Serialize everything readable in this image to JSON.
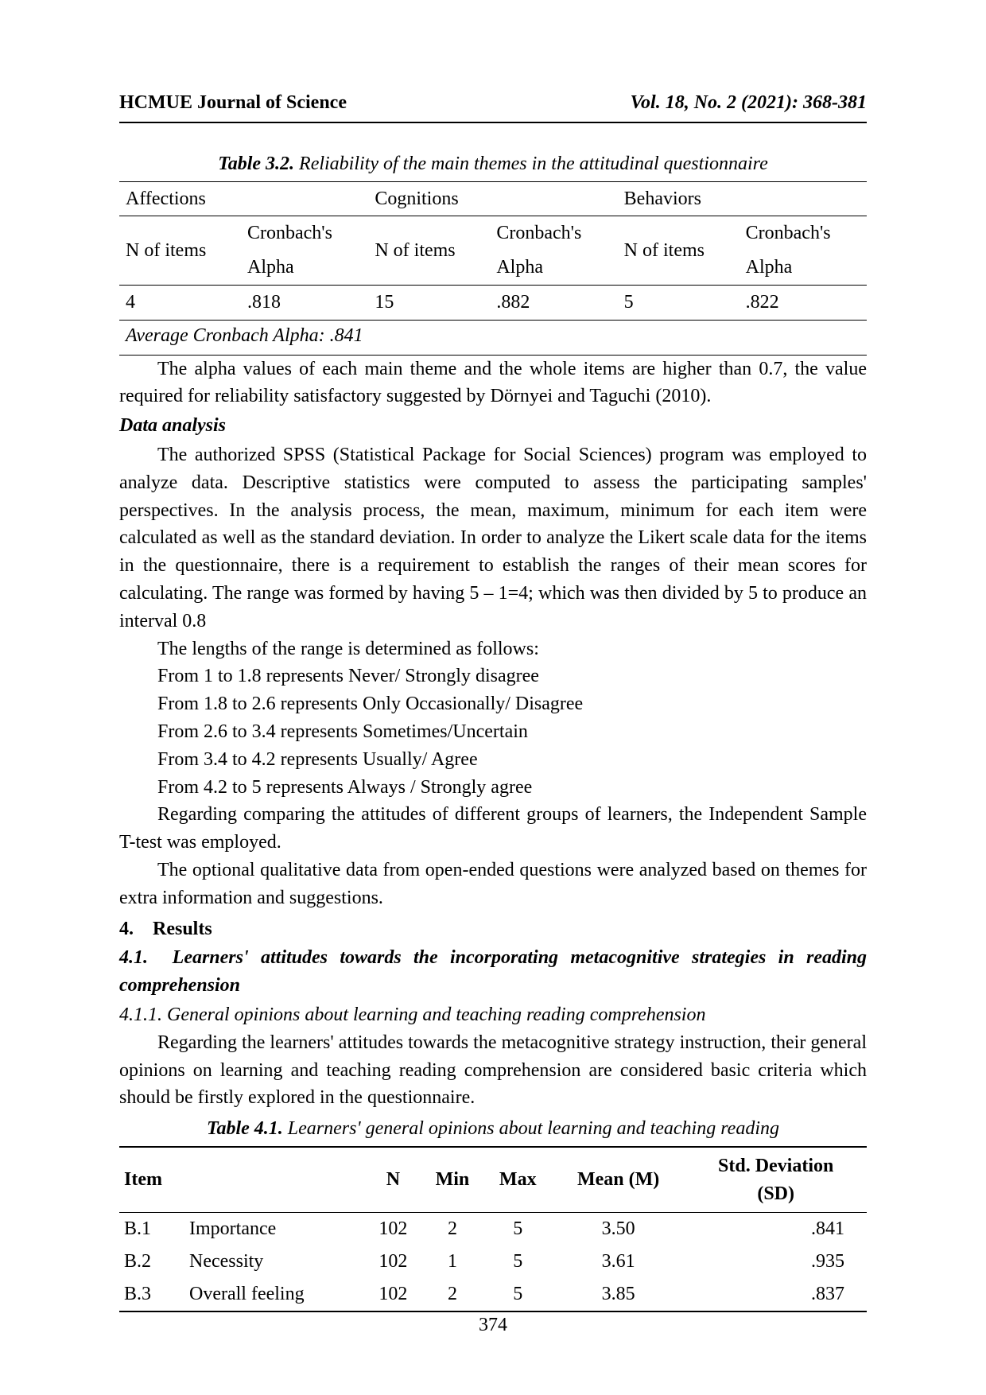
{
  "header": {
    "left": "HCMUE Journal of Science",
    "right": "Vol. 18, No. 2 (2021): 368-381"
  },
  "table32": {
    "captionLabel": "Table 3.2.",
    "captionText": " Reliability of the main themes in the attitudinal questionnaire",
    "groups": [
      "Affections",
      "Cognitions",
      "Behaviors"
    ],
    "subhead1": "N of items",
    "subhead2a": "Cronbach's",
    "subhead2b": "Alpha",
    "row": {
      "n1": "4",
      "a1": ".818",
      "n2": "15",
      "a2": ".882",
      "n3": "5",
      "a3": ".822"
    },
    "avg": "Average Cronbach Alpha: .841"
  },
  "body": {
    "p1": "The alpha values of each main theme and the whole items are higher than 0.7, the value required for reliability satisfactory suggested by Dörnyei and Taguchi (2010).",
    "dataAnalysisHeading": "Data analysis",
    "p2": "The authorized SPSS (Statistical Package for Social Sciences) program was employed to analyze data. Descriptive statistics were computed to assess the participating samples' perspectives. In the analysis process, the mean, maximum, minimum for each item were calculated as well as the standard deviation. In order to analyze the Likert scale data for the items in the questionnaire, there is a requirement to establish the ranges of their mean scores for calculating. The range was formed by having 5 – 1=4; which was then divided by 5 to produce an interval 0.8",
    "p3": "The lengths of the range is determined as follows:",
    "r1": "From 1 to 1.8 represents Never/ Strongly disagree",
    "r2": "From 1.8 to 2.6 represents Only Occasionally/ Disagree",
    "r3": "From 2.6 to 3.4 represents Sometimes/Uncertain",
    "r4": "From 3.4 to 4.2 represents Usually/ Agree",
    "r5": "From 4.2 to 5 represents Always / Strongly agree",
    "p4": "Regarding comparing the attitudes of different groups of learners, the Independent Sample T-test was employed.",
    "p5": "The optional qualitative data from open-ended questions were analyzed based on themes for extra information and suggestions.",
    "h4num": "4.",
    "h4text": "Results",
    "h41num": "4.1.",
    "h41text": "Learners' attitudes towards the incorporating metacognitive strategies in reading comprehension",
    "h411": "4.1.1. General opinions about learning and teaching reading comprehension",
    "p6": "Regarding the learners' attitudes towards the metacognitive strategy instruction, their general opinions on learning and teaching reading comprehension are considered basic criteria which should be firstly explored in the questionnaire."
  },
  "table41": {
    "captionLabel": "Table 4.1.",
    "captionText": " Learners' general opinions about learning and teaching reading",
    "head": {
      "item": "Item",
      "n": "N",
      "min": "Min",
      "max": "Max",
      "mean": "Mean (M)",
      "sd1": "Std. Deviation",
      "sd2": "(SD)"
    },
    "rows": [
      {
        "code": "B.1",
        "label": "Importance",
        "n": "102",
        "min": "2",
        "max": "5",
        "mean": "3.50",
        "sd": ".841"
      },
      {
        "code": "B.2",
        "label": "Necessity",
        "n": "102",
        "min": "1",
        "max": "5",
        "mean": "3.61",
        "sd": ".935"
      },
      {
        "code": "B.3",
        "label": "Overall feeling",
        "n": "102",
        "min": "2",
        "max": "5",
        "mean": "3.85",
        "sd": ".837"
      }
    ]
  },
  "pageNumber": "374"
}
